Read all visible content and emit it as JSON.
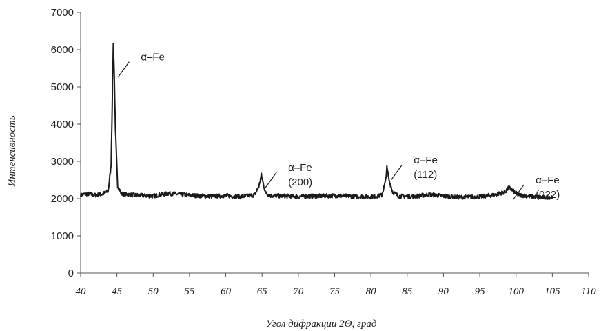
{
  "chart_data": {
    "type": "line",
    "title": "",
    "xlabel": "Угол  дифракции 2Θ, град",
    "ylabel": "Интенсивность",
    "xlim": [
      40,
      110
    ],
    "ylim": [
      0,
      7000
    ],
    "x_ticks": [
      40,
      45,
      50,
      55,
      60,
      65,
      70,
      75,
      80,
      85,
      90,
      95,
      100,
      105,
      110
    ],
    "y_ticks": [
      0,
      1000,
      2000,
      3000,
      4000,
      5000,
      6000,
      7000
    ],
    "grid": false,
    "legend": "none",
    "line_color": "#1a1a1a",
    "series": [
      {
        "x": [
          40,
          41,
          42,
          43,
          43.8,
          44.2,
          44.5,
          44.6,
          44.8,
          45.1,
          45.6,
          47,
          50,
          52,
          55,
          58,
          60,
          62,
          64,
          64.6,
          64.9,
          65.1,
          65.5,
          66.2,
          70,
          75,
          80,
          81.5,
          82,
          82.2,
          82.5,
          83,
          83.8,
          86,
          88,
          90,
          92,
          95,
          97,
          98.5,
          99,
          99.5,
          100.3,
          102,
          104,
          105
        ],
        "y": [
          2100,
          2130,
          2090,
          2120,
          2200,
          2900,
          6150,
          5600,
          3800,
          2350,
          2130,
          2100,
          2070,
          2140,
          2090,
          2060,
          2080,
          2050,
          2100,
          2350,
          2630,
          2450,
          2150,
          2080,
          2060,
          2080,
          2050,
          2090,
          2450,
          2830,
          2500,
          2180,
          2070,
          2060,
          2110,
          2070,
          2040,
          2050,
          2100,
          2180,
          2300,
          2220,
          2100,
          2060,
          2030,
          2050
        ]
      }
    ],
    "annotations": [
      {
        "x": 44.6,
        "label_lines": [
          "α–Fe"
        ]
      },
      {
        "x": 64.9,
        "label_lines": [
          "α–Fe",
          "(200)"
        ]
      },
      {
        "x": 82.2,
        "label_lines": [
          "α–Fe",
          "(112)"
        ]
      },
      {
        "x": 99.0,
        "label_lines": [
          "α–Fe",
          "(022)"
        ]
      }
    ]
  }
}
